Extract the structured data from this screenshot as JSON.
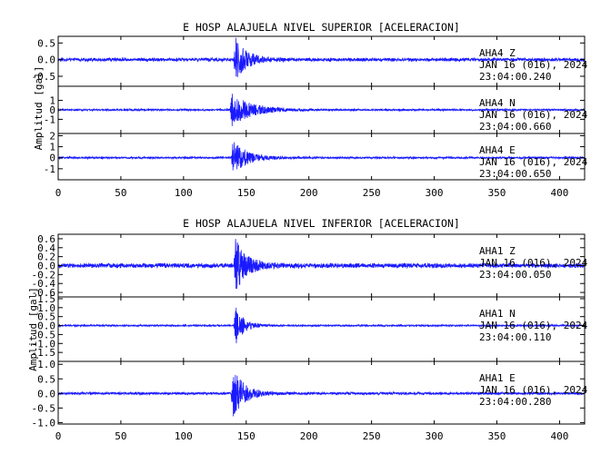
{
  "chart_data": [
    {
      "type": "line",
      "title": "E HOSP ALAJUELA NIVEL SUPERIOR [ACELERACION]",
      "ylabel": "Amplitud [gal]",
      "xlim": [
        0,
        420
      ],
      "x_ticks": [
        0,
        50,
        100,
        150,
        200,
        250,
        300,
        350,
        400
      ],
      "traces": [
        {
          "station": "AHA4",
          "component": "Z",
          "date": "JAN 16 (016), 2024",
          "time": "23:04:00.240",
          "ylim": [
            -0.8,
            0.7
          ],
          "y_ticks": [
            -0.5,
            0.0,
            0.5
          ],
          "y_tick_labels": [
            "-0.5",
            "0.0",
            "0.5"
          ],
          "noise": 0.06,
          "onset": 140,
          "peak": 0.75,
          "decay": 9,
          "seed": 11
        },
        {
          "station": "AHA4",
          "component": "N",
          "date": "JAN 16 (016), 2024",
          "time": "23:04:00.660",
          "ylim": [
            -2.5,
            2.5
          ],
          "y_ticks": [
            -1,
            0,
            1
          ],
          "y_tick_labels": [
            "-1",
            "0",
            "1"
          ],
          "noise": 0.1,
          "onset": 137,
          "peak": 1.9,
          "decay": 16,
          "seed": 23
        },
        {
          "station": "AHA4",
          "component": "E",
          "date": "JAN 16 (016), 2024",
          "time": "23:04:00.650",
          "ylim": [
            -2.0,
            2.2
          ],
          "y_ticks": [
            -1,
            0,
            1,
            2
          ],
          "y_tick_labels": [
            "-1",
            "0",
            "1",
            "2"
          ],
          "noise": 0.1,
          "onset": 138,
          "peak": 1.8,
          "decay": 11,
          "seed": 37
        }
      ]
    },
    {
      "type": "line",
      "title": "E HOSP ALAJUELA NIVEL INFERIOR [ACELERACION]",
      "ylabel": "Amplitud [gal]",
      "xlim": [
        0,
        420
      ],
      "x_ticks": [
        0,
        50,
        100,
        150,
        200,
        250,
        300,
        350,
        400
      ],
      "traces": [
        {
          "station": "AHA1",
          "component": "Z",
          "date": "JAN 16 (016), 2024",
          "time": "23:04:00.050",
          "ylim": [
            -0.7,
            0.7
          ],
          "y_ticks": [
            -0.6,
            -0.4,
            -0.2,
            0.0,
            0.2,
            0.4,
            0.6
          ],
          "y_tick_labels": [
            "-0.6",
            "-0.4",
            "-0.2",
            "0.0",
            "0.2",
            "0.4",
            "0.6"
          ],
          "noise": 0.06,
          "onset": 140,
          "peak": 0.68,
          "decay": 9,
          "seed": 41
        },
        {
          "station": "AHA1",
          "component": "N",
          "date": "JAN 16 (016), 2024",
          "time": "23:04:00.110",
          "ylim": [
            -2.0,
            1.6
          ],
          "y_ticks": [
            -1.5,
            -1.0,
            -0.5,
            0.0,
            0.5,
            1.0,
            1.5
          ],
          "y_tick_labels": [
            "-1.5",
            "-1.0",
            "-0.5",
            "0.0",
            "0.5",
            "1.0",
            "1.5"
          ],
          "noise": 0.05,
          "onset": 140,
          "peak": 1.3,
          "decay": 7,
          "seed": 53
        },
        {
          "station": "AHA1",
          "component": "E",
          "date": "JAN 16 (016), 2024",
          "time": "23:04:00.280",
          "ylim": [
            -1.05,
            1.1
          ],
          "y_ticks": [
            -1.0,
            -0.5,
            0.0,
            0.5,
            1.0
          ],
          "y_tick_labels": [
            "-1.0",
            "-0.5",
            "0.0",
            "0.5",
            "1.0"
          ],
          "noise": 0.05,
          "onset": 138,
          "peak": 1.0,
          "decay": 9,
          "seed": 67
        }
      ]
    }
  ]
}
